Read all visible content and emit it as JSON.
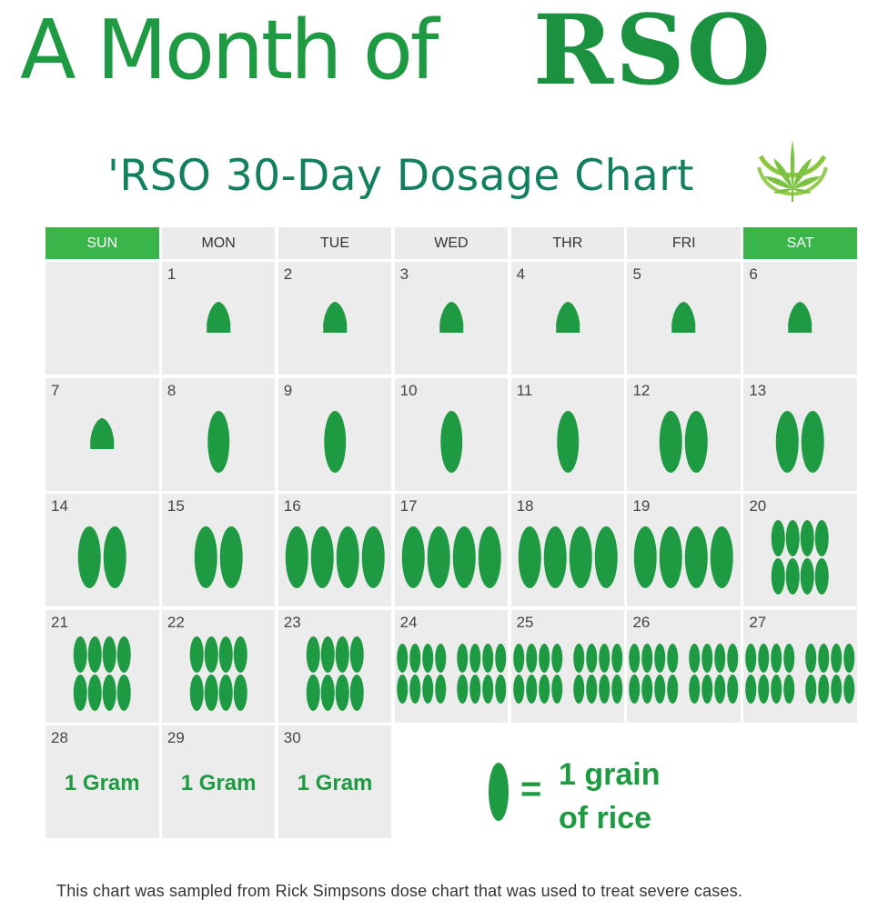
{
  "headline": {
    "part_a": "A Month of",
    "part_b": "RSO"
  },
  "subtitle": "'RSO 30-Day Dosage Chart",
  "logo": {
    "icon": "cannabis-leaf-icon",
    "color": "#7cc242"
  },
  "colors": {
    "accent": "#1e9a42",
    "weekend_header": "#39b54a",
    "cell": "#ececec"
  },
  "weekdays": [
    "SUN",
    "MON",
    "TUE",
    "WED",
    "THR",
    "FRI",
    "SAT"
  ],
  "days": [
    {
      "day": "1",
      "dose": "crumb"
    },
    {
      "day": "2",
      "dose": "crumb"
    },
    {
      "day": "3",
      "dose": "crumb"
    },
    {
      "day": "4",
      "dose": "crumb"
    },
    {
      "day": "5",
      "dose": "crumb"
    },
    {
      "day": "6",
      "dose": "crumb"
    },
    {
      "day": "7",
      "dose": "crumb"
    },
    {
      "day": "8",
      "dose": "1 grain"
    },
    {
      "day": "9",
      "dose": "1 grain"
    },
    {
      "day": "10",
      "dose": "1 grain"
    },
    {
      "day": "11",
      "dose": "1 grain"
    },
    {
      "day": "12",
      "dose": "2 grains"
    },
    {
      "day": "13",
      "dose": "2 grains"
    },
    {
      "day": "14",
      "dose": "2 grains"
    },
    {
      "day": "15",
      "dose": "2 grains"
    },
    {
      "day": "16",
      "dose": "4 grains"
    },
    {
      "day": "17",
      "dose": "4 grains"
    },
    {
      "day": "18",
      "dose": "4 grains"
    },
    {
      "day": "19",
      "dose": "4 grains"
    },
    {
      "day": "20",
      "dose": "8 grains"
    },
    {
      "day": "21",
      "dose": "8 grains"
    },
    {
      "day": "22",
      "dose": "8 grains"
    },
    {
      "day": "23",
      "dose": "8 grains"
    },
    {
      "day": "24",
      "dose": "16 grains"
    },
    {
      "day": "25",
      "dose": "16 grains"
    },
    {
      "day": "26",
      "dose": "16 grains"
    },
    {
      "day": "27",
      "dose": "16 grains"
    },
    {
      "day": "28",
      "dose": "1 Gram",
      "label": "1 Gram"
    },
    {
      "day": "29",
      "dose": "1 Gram",
      "label": "1 Gram"
    },
    {
      "day": "30",
      "dose": "1 Gram",
      "label": "1 Gram"
    }
  ],
  "legend": {
    "equals": "=",
    "line1": "1 grain",
    "line2": "of rice",
    "icon": "rice-grain-icon"
  },
  "footnote": "This chart was sampled from Rick Simpsons dose chart that was used to treat severe cases."
}
